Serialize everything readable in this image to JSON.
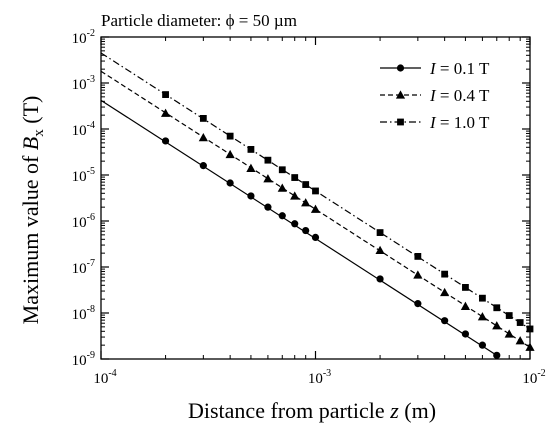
{
  "chart_data": {
    "type": "line",
    "annotation": "Particle diameter: ϕ = 50 µm",
    "xlabel": {
      "prefix": "Distance from particle ",
      "var": "z",
      "suffix": " (m)"
    },
    "ylabel": {
      "prefix": "Maximum value of ",
      "var": "B",
      "sub": "x",
      "suffix": " (T)"
    },
    "xscale": "log",
    "yscale": "log",
    "xlim": [
      0.0001,
      0.01
    ],
    "ylim": [
      1e-09,
      0.01
    ],
    "x_ticks": [
      {
        "value": 0.0001,
        "base": "10",
        "exp": "-4"
      },
      {
        "value": 0.001,
        "base": "10",
        "exp": "-3"
      },
      {
        "value": 0.01,
        "base": "10",
        "exp": "-2"
      }
    ],
    "y_ticks": [
      {
        "value": 1e-09,
        "base": "10",
        "exp": "-9"
      },
      {
        "value": 1e-08,
        "base": "10",
        "exp": "-8"
      },
      {
        "value": 1e-07,
        "base": "10",
        "exp": "-7"
      },
      {
        "value": 1e-06,
        "base": "10",
        "exp": "-6"
      },
      {
        "value": 1e-05,
        "base": "10",
        "exp": "-5"
      },
      {
        "value": 0.0001,
        "base": "10",
        "exp": "-4"
      },
      {
        "value": 0.001,
        "base": "10",
        "exp": "-3"
      },
      {
        "value": 0.01,
        "base": "10",
        "exp": "-2"
      }
    ],
    "grid": false,
    "legend_position": "top-right",
    "series": [
      {
        "name": "I = 0.1 T",
        "legend_var": "I",
        "legend_value": " = 0.1 T",
        "marker": "circle",
        "line_style": "solid",
        "line_x": [
          0.0001,
          0.007
        ],
        "line_y": [
          0.00042,
          1.2e-09
        ],
        "x": [
          0.0002,
          0.0003,
          0.0004,
          0.0005,
          0.0006,
          0.0007,
          0.0008,
          0.0009,
          0.001,
          0.002,
          0.003,
          0.004,
          0.005,
          0.006,
          0.007
        ],
        "y": [
          5.5e-05,
          1.6e-05,
          6.7e-06,
          3.5e-06,
          2e-06,
          1.3e-06,
          8.7e-07,
          6.2e-07,
          4.4e-07,
          5.5e-08,
          1.6e-08,
          6.8e-09,
          3.5e-09,
          2e-09,
          1.2e-09
        ]
      },
      {
        "name": "I = 0.4 T",
        "legend_var": "I",
        "legend_value": " = 0.4 T",
        "marker": "triangle",
        "line_style": "dashed",
        "line_x": [
          0.0001,
          0.01
        ],
        "line_y": [
          0.0018,
          1.8e-09
        ],
        "x": [
          0.0002,
          0.0003,
          0.0004,
          0.0005,
          0.0006,
          0.0007,
          0.0008,
          0.0009,
          0.001,
          0.002,
          0.003,
          0.004,
          0.005,
          0.006,
          0.007,
          0.008,
          0.009,
          0.01
        ],
        "y": [
          0.00022,
          6.5e-05,
          2.8e-05,
          1.4e-05,
          8.3e-06,
          5.2e-06,
          3.5e-06,
          2.5e-06,
          1.8e-06,
          2.3e-07,
          6.7e-08,
          2.8e-08,
          1.4e-08,
          8.3e-09,
          5.3e-09,
          3.5e-09,
          2.5e-09,
          1.8e-09
        ]
      },
      {
        "name": "I = 1.0 T",
        "legend_var": "I",
        "legend_value": " = 1.0 T",
        "marker": "square",
        "line_style": "dashdot",
        "line_x": [
          0.0001,
          0.01
        ],
        "line_y": [
          0.0045,
          4.5e-09
        ],
        "x": [
          0.0002,
          0.0003,
          0.0004,
          0.0005,
          0.0006,
          0.0007,
          0.0008,
          0.0009,
          0.001,
          0.002,
          0.003,
          0.004,
          0.005,
          0.006,
          0.007,
          0.008,
          0.009,
          0.01
        ],
        "y": [
          0.00056,
          0.00017,
          7e-05,
          3.6e-05,
          2.1e-05,
          1.3e-05,
          8.8e-06,
          6.2e-06,
          4.5e-06,
          5.6e-07,
          1.7e-07,
          7e-08,
          3.6e-08,
          2.1e-08,
          1.3e-08,
          8.8e-09,
          6.2e-09,
          4.5e-09
        ]
      }
    ]
  }
}
